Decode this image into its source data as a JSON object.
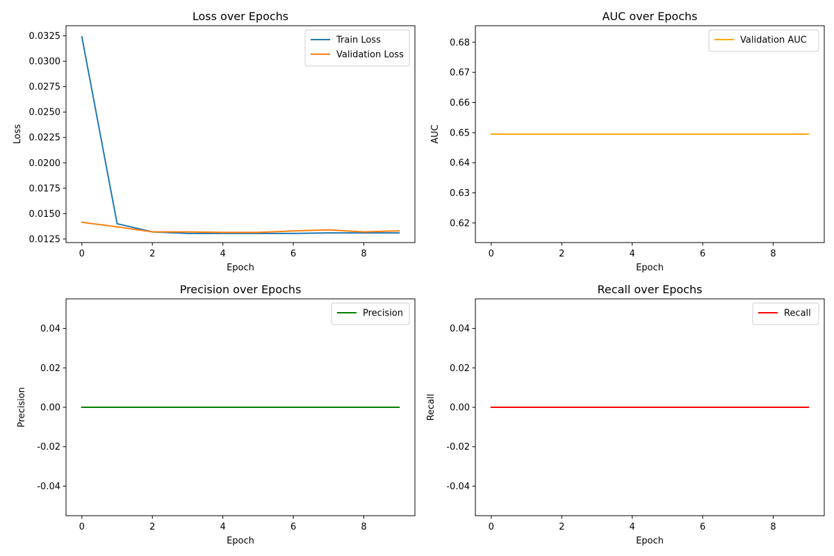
{
  "chart_data": [
    {
      "type": "line",
      "title": "Loss over Epochs",
      "xlabel": "Epoch",
      "ylabel": "Loss",
      "xlim": [
        -0.45,
        9.45
      ],
      "ylim": [
        0.01215,
        0.0335
      ],
      "xticks": [
        0,
        2,
        4,
        6,
        8
      ],
      "yticks": [
        0.0125,
        0.015,
        0.0175,
        0.02,
        0.0225,
        0.025,
        0.0275,
        0.03,
        0.0325
      ],
      "ytick_decimals": 4,
      "x": [
        0,
        1,
        2,
        3,
        4,
        5,
        6,
        7,
        8,
        9
      ],
      "series": [
        {
          "name": "Train Loss",
          "color": "#1f77b4",
          "values": [
            0.0324,
            0.014,
            0.0132,
            0.01305,
            0.01305,
            0.01305,
            0.01305,
            0.0131,
            0.0131,
            0.0131
          ]
        },
        {
          "name": "Validation Loss",
          "color": "#ff7f0e",
          "values": [
            0.01415,
            0.0137,
            0.0132,
            0.0132,
            0.01315,
            0.01315,
            0.0133,
            0.0134,
            0.0132,
            0.0133
          ]
        }
      ],
      "legend": "top-right",
      "grid": false
    },
    {
      "type": "line",
      "title": "AUC over Epochs",
      "xlabel": "Epoch",
      "ylabel": "AUC",
      "xlim": [
        -0.45,
        9.45
      ],
      "ylim": [
        0.6135,
        0.6855
      ],
      "xticks": [
        0,
        2,
        4,
        6,
        8
      ],
      "yticks": [
        0.62,
        0.63,
        0.64,
        0.65,
        0.66,
        0.67,
        0.68
      ],
      "ytick_decimals": 2,
      "x": [
        0,
        1,
        2,
        3,
        4,
        5,
        6,
        7,
        8,
        9
      ],
      "series": [
        {
          "name": "Validation AUC",
          "color": "#ffa500",
          "values": [
            0.6495,
            0.6495,
            0.6495,
            0.6495,
            0.6495,
            0.6495,
            0.6495,
            0.6495,
            0.6495,
            0.6495
          ]
        }
      ],
      "legend": "top-right",
      "grid": false
    },
    {
      "type": "line",
      "title": "Precision over Epochs",
      "xlabel": "Epoch",
      "ylabel": "Precision",
      "xlim": [
        -0.45,
        9.45
      ],
      "ylim": [
        -0.055,
        0.055
      ],
      "xticks": [
        0,
        2,
        4,
        6,
        8
      ],
      "yticks": [
        -0.04,
        -0.02,
        0.0,
        0.02,
        0.04
      ],
      "ytick_decimals": 2,
      "x": [
        0,
        1,
        2,
        3,
        4,
        5,
        6,
        7,
        8,
        9
      ],
      "series": [
        {
          "name": "Precision",
          "color": "#008000",
          "values": [
            0,
            0,
            0,
            0,
            0,
            0,
            0,
            0,
            0,
            0
          ]
        }
      ],
      "legend": "top-right",
      "grid": false
    },
    {
      "type": "line",
      "title": "Recall over Epochs",
      "xlabel": "Epoch",
      "ylabel": "Recall",
      "xlim": [
        -0.45,
        9.45
      ],
      "ylim": [
        -0.055,
        0.055
      ],
      "xticks": [
        0,
        2,
        4,
        6,
        8
      ],
      "yticks": [
        -0.04,
        -0.02,
        0.0,
        0.02,
        0.04
      ],
      "ytick_decimals": 2,
      "x": [
        0,
        1,
        2,
        3,
        4,
        5,
        6,
        7,
        8,
        9
      ],
      "series": [
        {
          "name": "Recall",
          "color": "#ff0000",
          "values": [
            0,
            0,
            0,
            0,
            0,
            0,
            0,
            0,
            0,
            0
          ]
        }
      ],
      "legend": "top-right",
      "grid": false
    }
  ]
}
